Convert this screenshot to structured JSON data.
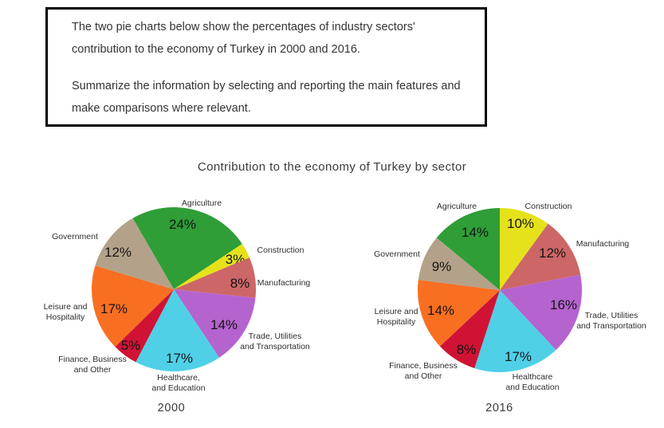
{
  "task_box": {
    "paragraph_1": "The two pie charts below show the percentages of industry sectors' contribution to the economy of Turkey in 2000 and 2016.",
    "paragraph_2": "Summarize the information by selecting and reporting the main features and make comparisons where relevant."
  },
  "figure": {
    "title": "Contribution to the economy of Turkey by sector"
  },
  "chart_data": [
    {
      "type": "pie",
      "year_label": "2000",
      "start_angle_deg": -30,
      "unit": "%",
      "legend_position": "outside-labels",
      "sectors": [
        {
          "label": "Agriculture",
          "value": 24,
          "color": "#2f9e37",
          "label_lines": [
            "Agriculture"
          ]
        },
        {
          "label": "Construction",
          "value": 3,
          "color": "#e5e21c",
          "label_lines": [
            "Construction"
          ]
        },
        {
          "label": "Manufacturing",
          "value": 8,
          "color": "#cd6667",
          "label_lines": [
            "Manufacturing"
          ]
        },
        {
          "label": "Trade, Utilities and Transportation",
          "value": 14,
          "color": "#b563cf",
          "label_lines": [
            "Trade, Utilities",
            "and Transportation"
          ]
        },
        {
          "label": "Healthcare, and Education",
          "value": 17,
          "color": "#4fd0e7",
          "label_lines": [
            "Healthcare,",
            "and Education"
          ]
        },
        {
          "label": "Finance, Business and Other",
          "value": 5,
          "color": "#d01335",
          "label_lines": [
            "Finance, Business",
            "and Other"
          ]
        },
        {
          "label": "Leisure and Hospitality",
          "value": 17,
          "color": "#f96f22",
          "label_lines": [
            "Leisure and",
            "Hospitality"
          ]
        },
        {
          "label": "Government",
          "value": 12,
          "color": "#b3a289",
          "label_lines": [
            "Government"
          ]
        }
      ]
    },
    {
      "type": "pie",
      "year_label": "2016",
      "start_angle_deg": -50.4,
      "unit": "%",
      "legend_position": "outside-labels",
      "sectors": [
        {
          "label": "Agriculture",
          "value": 14,
          "color": "#2f9e37",
          "label_lines": [
            "Agriculture"
          ]
        },
        {
          "label": "Construction",
          "value": 10,
          "color": "#e5e21c",
          "label_lines": [
            "Construction"
          ]
        },
        {
          "label": "Manufacturing",
          "value": 12,
          "color": "#cd6667",
          "label_lines": [
            "Manufacturing"
          ]
        },
        {
          "label": "Trade, Utilities and Transportation",
          "value": 16,
          "color": "#b563cf",
          "label_lines": [
            "Trade, Utilities",
            "and Transportation"
          ]
        },
        {
          "label": "Healthcare and Education",
          "value": 17,
          "color": "#4fd0e7",
          "label_lines": [
            "Healthcare",
            "and Education"
          ]
        },
        {
          "label": "Finance, Business and Other",
          "value": 8,
          "color": "#d01335",
          "label_lines": [
            "Finance, Business",
            "and Other"
          ]
        },
        {
          "label": "Leisure and Hospitality",
          "value": 14,
          "color": "#f96f22",
          "label_lines": [
            "Leisure and",
            "Hospitality"
          ]
        },
        {
          "label": "Government",
          "value": 9,
          "color": "#b3a289",
          "label_lines": [
            "Government"
          ]
        }
      ]
    }
  ]
}
